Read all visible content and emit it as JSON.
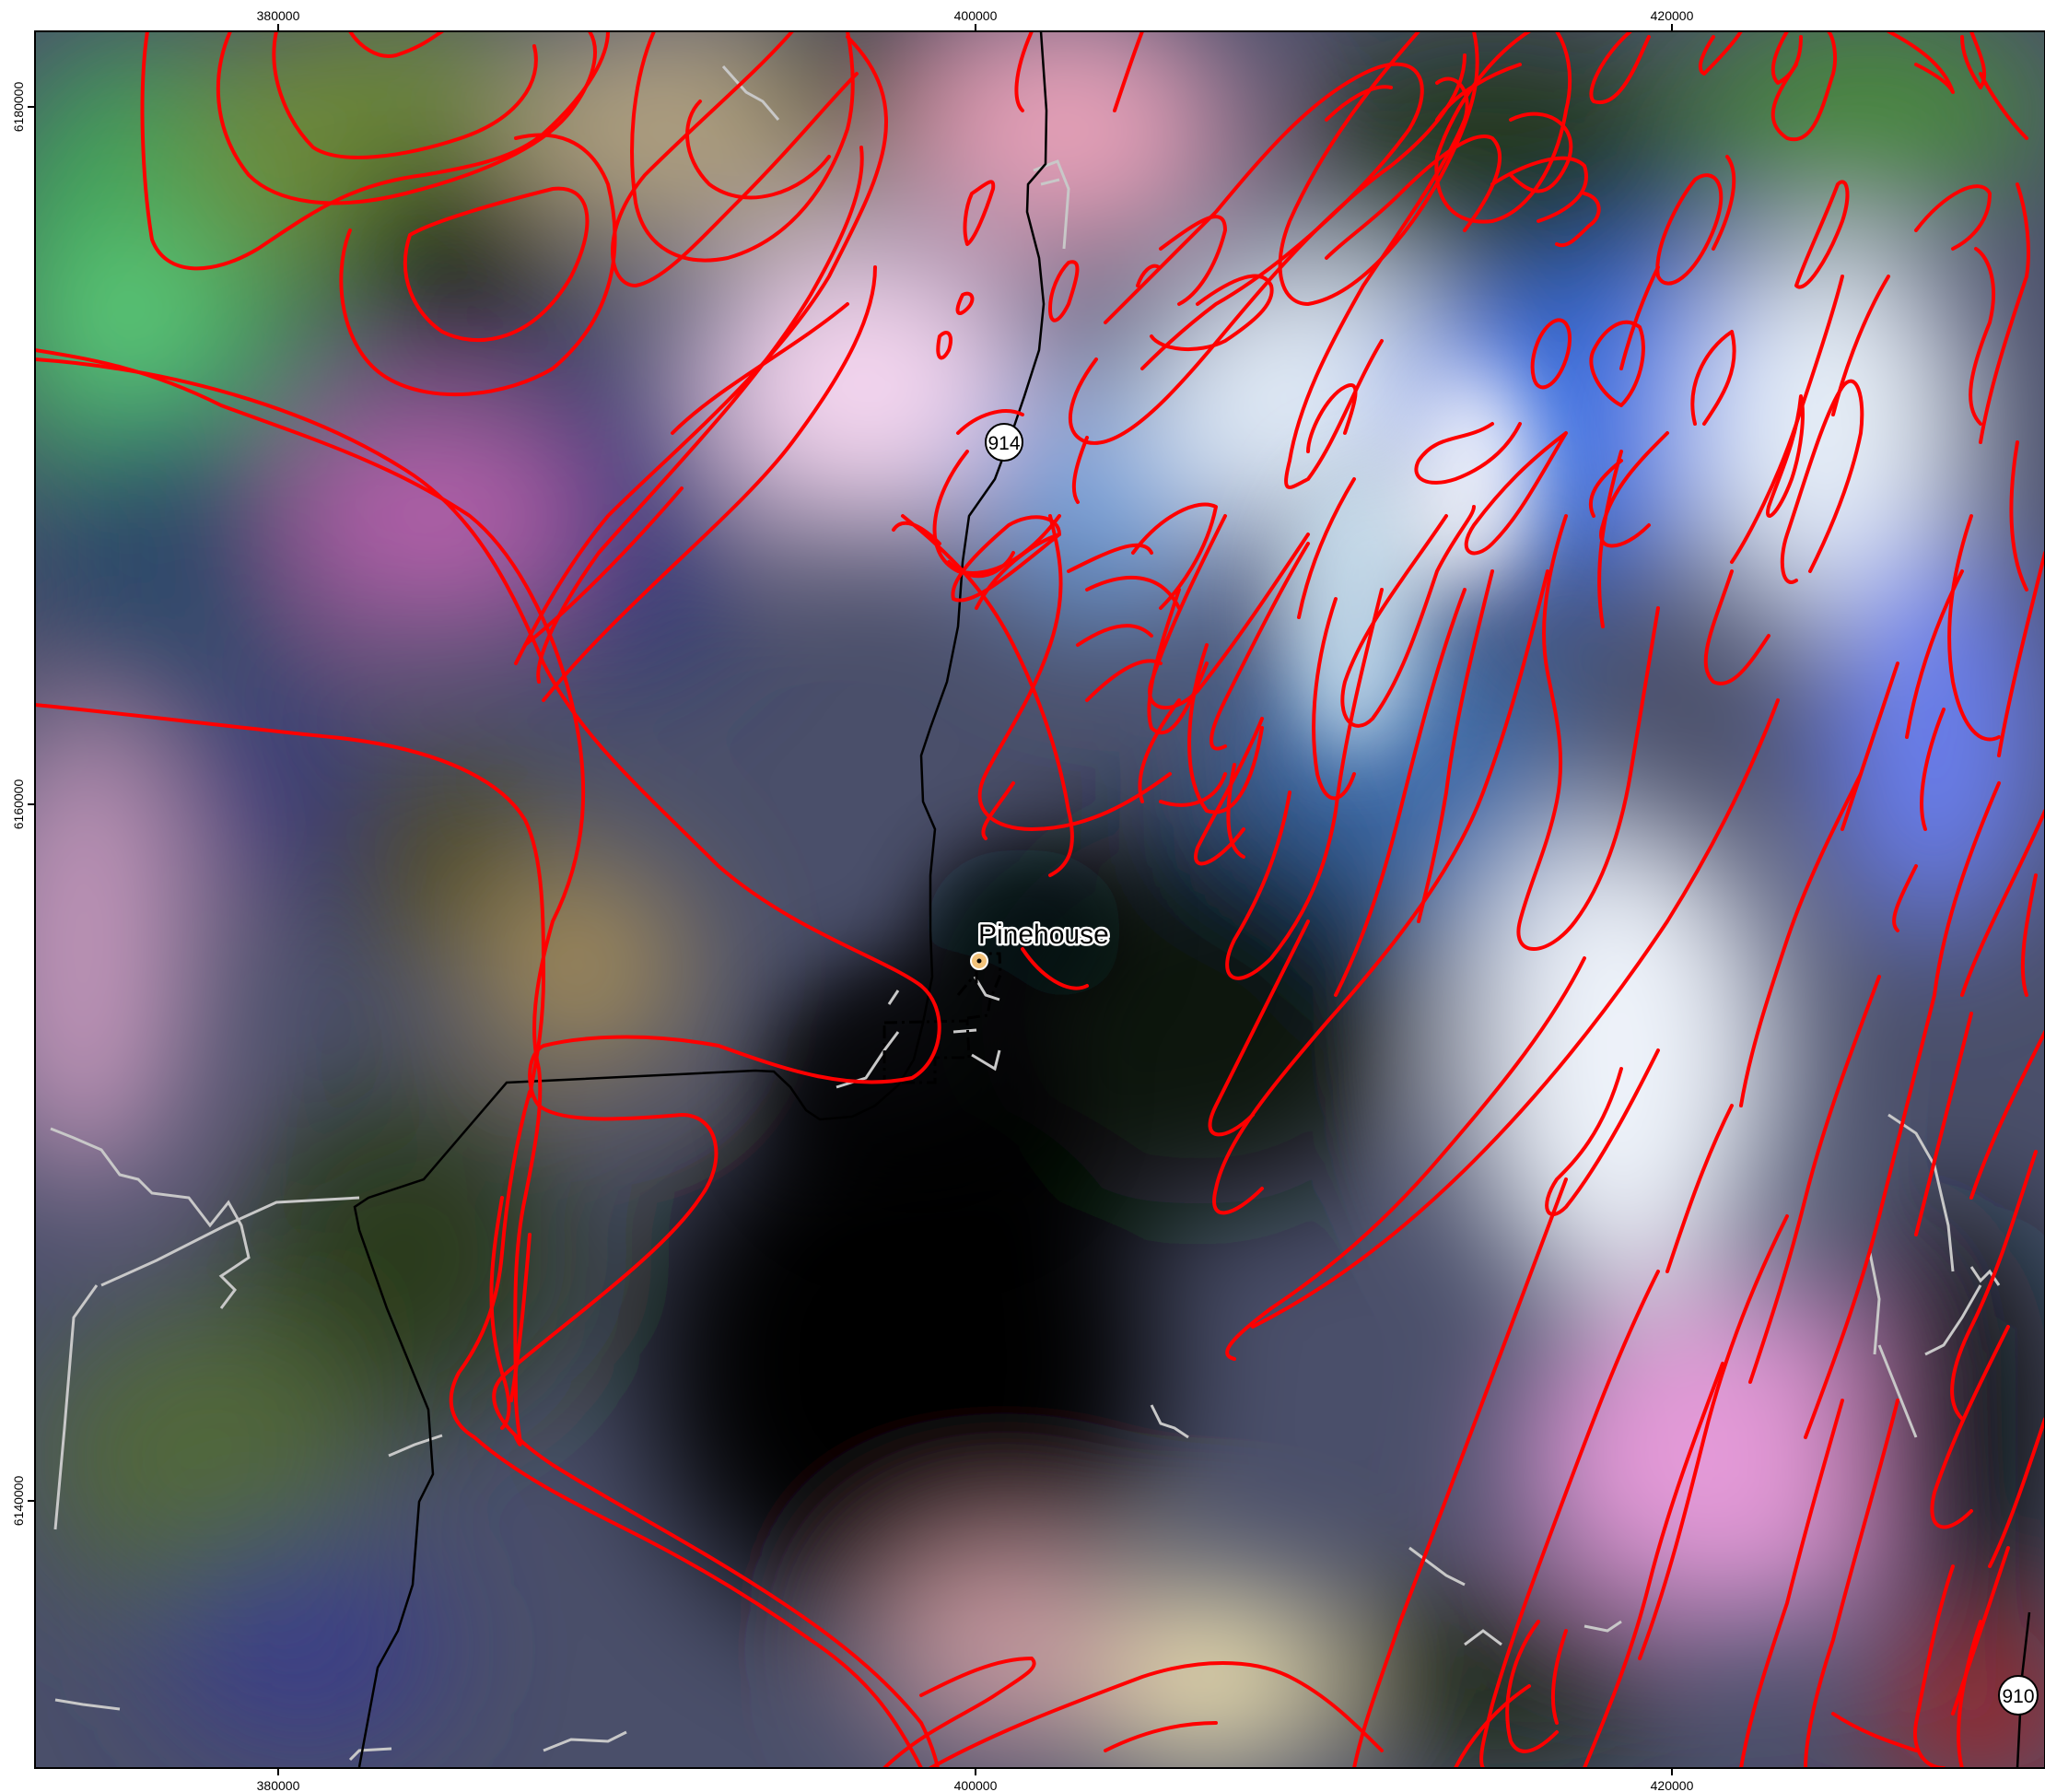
{
  "map": {
    "x_axis": {
      "ticks": [
        {
          "value": 380000,
          "label": "380000"
        },
        {
          "value": 400000,
          "label": "400000"
        },
        {
          "value": 420000,
          "label": "420000"
        }
      ]
    },
    "y_axis": {
      "ticks": [
        {
          "value": 6180000,
          "label": "6180000"
        },
        {
          "value": 6160000,
          "label": "6160000"
        },
        {
          "value": 6140000,
          "label": "6140000"
        }
      ]
    },
    "place": {
      "name": "Pinehouse",
      "marker_color": "#f2c27a"
    },
    "highway_shields": [
      {
        "number": "914"
      },
      {
        "number": "910"
      }
    ],
    "colors": {
      "geology_contours": "#ff0000",
      "highway": "#000000",
      "minor_roads": "#c8c8c8",
      "community_boundary": "#000000"
    }
  }
}
